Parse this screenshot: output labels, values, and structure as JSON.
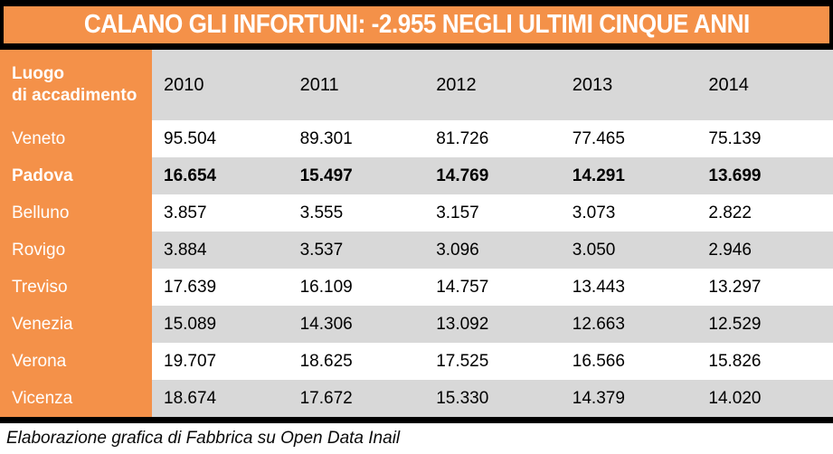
{
  "title": "CALANO GLI INFORTUNI: -2.955 NEGLI ULTIMI CINQUE ANNI",
  "footer": "Elaborazione grafica di Fabbrica su Open Data Inail",
  "colors": {
    "accent_orange": "#F49149",
    "stripe_gray": "#D8D8D8",
    "border_black": "#000000",
    "title_text": "#FFFFFF"
  },
  "table": {
    "corner_label_line1": "Luogo",
    "corner_label_line2": "di accadimento",
    "years": [
      "2010",
      "2011",
      "2012",
      "2013",
      "2014"
    ],
    "rows": [
      {
        "label": "Veneto",
        "bold": false,
        "striped": false,
        "values": [
          "95.504",
          "89.301",
          "81.726",
          "77.465",
          "75.139"
        ]
      },
      {
        "label": "Padova",
        "bold": true,
        "striped": true,
        "values": [
          "16.654",
          "15.497",
          "14.769",
          "14.291",
          "13.699"
        ]
      },
      {
        "label": "Belluno",
        "bold": false,
        "striped": false,
        "values": [
          "3.857",
          "3.555",
          "3.157",
          "3.073",
          "2.822"
        ]
      },
      {
        "label": "Rovigo",
        "bold": false,
        "striped": true,
        "values": [
          "3.884",
          "3.537",
          "3.096",
          "3.050",
          "2.946"
        ]
      },
      {
        "label": "Treviso",
        "bold": false,
        "striped": false,
        "values": [
          "17.639",
          "16.109",
          "14.757",
          "13.443",
          "13.297"
        ]
      },
      {
        "label": "Venezia",
        "bold": false,
        "striped": true,
        "values": [
          "15.089",
          "14.306",
          "13.092",
          "12.663",
          "12.529"
        ]
      },
      {
        "label": "Verona",
        "bold": false,
        "striped": false,
        "values": [
          "19.707",
          "18.625",
          "17.525",
          "16.566",
          "15.826"
        ]
      },
      {
        "label": "Vicenza",
        "bold": false,
        "striped": true,
        "values": [
          "18.674",
          "17.672",
          "15.330",
          "14.379",
          "14.020"
        ]
      }
    ]
  },
  "chart_data": {
    "type": "table",
    "title": "CALANO GLI INFORTUNI: -2.955 NEGLI ULTIMI CINQUE ANNI",
    "row_header_label": "Luogo di accadimento",
    "categories": [
      "2010",
      "2011",
      "2012",
      "2013",
      "2014"
    ],
    "series": [
      {
        "name": "Veneto",
        "values": [
          95504,
          89301,
          81726,
          77465,
          75139
        ]
      },
      {
        "name": "Padova",
        "values": [
          16654,
          15497,
          14769,
          14291,
          13699
        ]
      },
      {
        "name": "Belluno",
        "values": [
          3857,
          3555,
          3157,
          3073,
          2822
        ]
      },
      {
        "name": "Rovigo",
        "values": [
          3884,
          3537,
          3096,
          3050,
          2946
        ]
      },
      {
        "name": "Treviso",
        "values": [
          17639,
          16109,
          14757,
          13443,
          13297
        ]
      },
      {
        "name": "Venezia",
        "values": [
          15089,
          14306,
          13092,
          12663,
          12529
        ]
      },
      {
        "name": "Verona",
        "values": [
          19707,
          18625,
          17525,
          16566,
          15826
        ]
      },
      {
        "name": "Vicenza",
        "values": [
          18674,
          17672,
          15330,
          14379,
          14020
        ]
      }
    ],
    "highlighted_row": "Padova",
    "annotation": "Elaborazione grafica di Fabbrica su Open Data Inail"
  }
}
